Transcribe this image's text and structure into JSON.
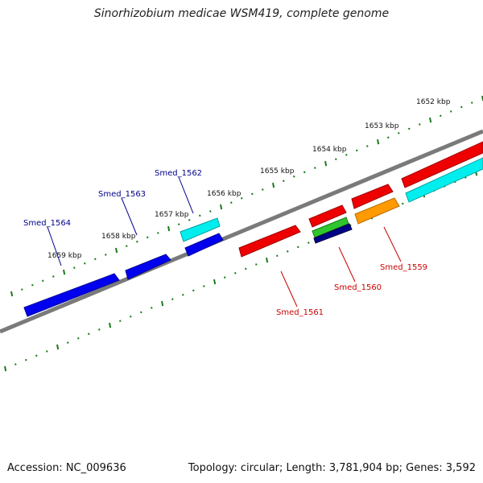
{
  "title": "Sinorhizobium medicae WSM419, complete genome",
  "footer": {
    "accession": "Accession: NC_009636",
    "summary": "Topology: circular; Length: 3,781,904 bp; Genes: 3,592"
  },
  "colors": {
    "backbone": "#808080",
    "tick": "#1a7a1a",
    "top_strand_label": "#00008b",
    "bottom_strand_label": "#cc0000"
  },
  "kbp_labels": [
    "1652 kbp",
    "1653 kbp",
    "1654 kbp",
    "1655 kbp",
    "1656 kbp",
    "1657 kbp",
    "1658 kbp",
    "1659 kbp"
  ],
  "gene_labels": {
    "top": [
      "Smed_1564",
      "Smed_1563",
      "Smed_1562"
    ],
    "bottom": [
      "Smed_1561",
      "Smed_1560",
      "Smed_1559"
    ]
  },
  "feature_colors": [
    "blue",
    "cyan",
    "red",
    "green",
    "navy",
    "orange"
  ]
}
